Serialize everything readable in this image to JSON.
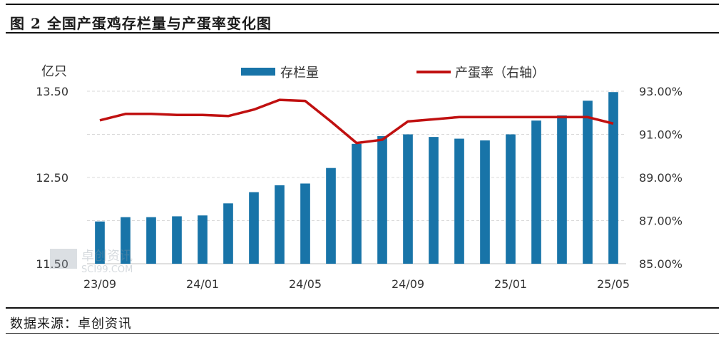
{
  "title": "图 2 全国产蛋鸡存栏量与产蛋率变化图",
  "source": "数据来源：卓创资讯",
  "watermark_text": "卓创资讯 SCI99.COM",
  "chart_data": {
    "type": "bar",
    "left_axis_label": "亿只",
    "ylim_left": [
      11.5,
      13.5
    ],
    "yticks_left": [
      "11.50",
      "12.50",
      "13.50"
    ],
    "ylim_right": [
      85.0,
      93.0
    ],
    "yticks_right": [
      "85.00%",
      "87.00%",
      "89.00%",
      "91.00%",
      "93.00%"
    ],
    "xtick_labels": [
      {
        "index": 0,
        "label": "23/09"
      },
      {
        "index": 4,
        "label": "24/01"
      },
      {
        "index": 8,
        "label": "24/05"
      },
      {
        "index": 12,
        "label": "24/09"
      },
      {
        "index": 16,
        "label": "25/01"
      },
      {
        "index": 20,
        "label": "25/05"
      }
    ],
    "categories": [
      "23/09",
      "23/10",
      "23/11",
      "23/12",
      "24/01",
      "24/02",
      "24/03",
      "24/04",
      "24/05",
      "24/06",
      "24/07",
      "24/08",
      "24/09",
      "24/10",
      "24/11",
      "24/12",
      "25/01",
      "25/02",
      "25/03",
      "25/04",
      "25/05"
    ],
    "series": [
      {
        "name": "存栏量",
        "kind": "bar",
        "axis": "left",
        "color": "#1874a8",
        "values": [
          11.99,
          12.04,
          12.04,
          12.05,
          12.06,
          12.2,
          12.33,
          12.41,
          12.43,
          12.61,
          12.89,
          12.98,
          13.0,
          12.97,
          12.95,
          12.93,
          13.0,
          13.16,
          13.22,
          13.39,
          13.49
        ]
      },
      {
        "name": "产蛋率（右轴）",
        "kind": "line",
        "axis": "right",
        "color": "#c01010",
        "values": [
          91.65,
          91.95,
          91.95,
          91.9,
          91.9,
          91.85,
          92.15,
          92.6,
          92.55,
          91.6,
          90.6,
          90.75,
          91.6,
          91.7,
          91.8,
          91.8,
          91.8,
          91.8,
          91.8,
          91.8,
          91.5
        ]
      }
    ],
    "grid": true,
    "legend_position": "top-center"
  }
}
